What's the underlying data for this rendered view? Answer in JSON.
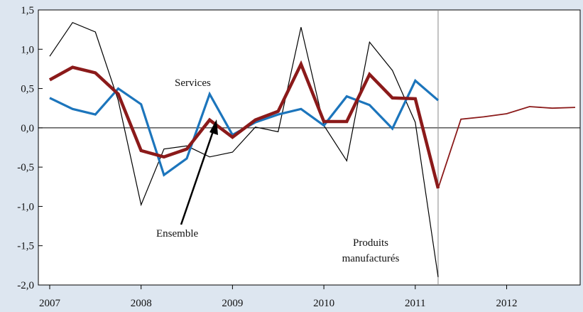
{
  "chart_data": {
    "type": "line",
    "title": "",
    "xlabel": "",
    "ylabel": "",
    "ylim": [
      -2.0,
      1.5
    ],
    "yticks": [
      "1,5",
      "1,0",
      "0,5",
      "0,0",
      "-0,5",
      "-1,0",
      "-1,5",
      "-2,0"
    ],
    "ytick_values": [
      1.5,
      1.0,
      0.5,
      0.0,
      -0.5,
      -1.0,
      -1.5,
      -2.0
    ],
    "xtick_labels": [
      "2007",
      "2008",
      "2009",
      "2010",
      "2011",
      "2012"
    ],
    "xtick_positions": [
      0,
      4,
      8,
      12,
      16,
      20
    ],
    "xlim": [
      0,
      23
    ],
    "vertical_line_x": 17,
    "grid": false,
    "legend": "none",
    "series": [
      {
        "key": "produits",
        "color": "#000000",
        "x": [
          0,
          1,
          2,
          3,
          4,
          5,
          6,
          7,
          8,
          9,
          10,
          11,
          12,
          13,
          14,
          15,
          16,
          17
        ],
        "values": [
          0.91,
          1.34,
          1.22,
          0.35,
          -0.98,
          -0.27,
          -0.23,
          -0.37,
          -0.31,
          0.01,
          -0.05,
          1.28,
          0.03,
          -0.42,
          1.09,
          0.73,
          0.07,
          -1.9
        ]
      },
      {
        "key": "services",
        "color": "#1c75bc",
        "x": [
          0,
          1,
          2,
          3,
          4,
          5,
          6,
          7,
          8,
          9,
          10,
          11,
          12,
          13,
          14,
          15,
          16,
          17
        ],
        "values": [
          0.38,
          0.24,
          0.17,
          0.5,
          0.3,
          -0.6,
          -0.39,
          0.43,
          -0.09,
          0.07,
          0.17,
          0.24,
          0.03,
          0.4,
          0.29,
          -0.01,
          0.6,
          0.35
        ]
      },
      {
        "key": "ensemble",
        "color": "#8b1a1a",
        "x": [
          0,
          1,
          2,
          3,
          4,
          5,
          6,
          7,
          8,
          9,
          10,
          11,
          12,
          13,
          14,
          15,
          16,
          17
        ],
        "values": [
          0.61,
          0.77,
          0.7,
          0.43,
          -0.29,
          -0.37,
          -0.27,
          0.1,
          -0.12,
          0.1,
          0.21,
          0.81,
          0.08,
          0.08,
          0.68,
          0.38,
          0.37,
          -0.77
        ]
      },
      {
        "key": "projection",
        "color": "#8b1a1a",
        "x": [
          17,
          18,
          19,
          20,
          21,
          22,
          23
        ],
        "values": [
          -0.77,
          0.11,
          0.14,
          0.18,
          0.27,
          0.25,
          0.26
        ]
      }
    ],
    "annotations": {
      "services": "Services",
      "ensemble": "Ensemble",
      "produits_line1": "Produits",
      "produits_line2": "manufacturés"
    }
  }
}
